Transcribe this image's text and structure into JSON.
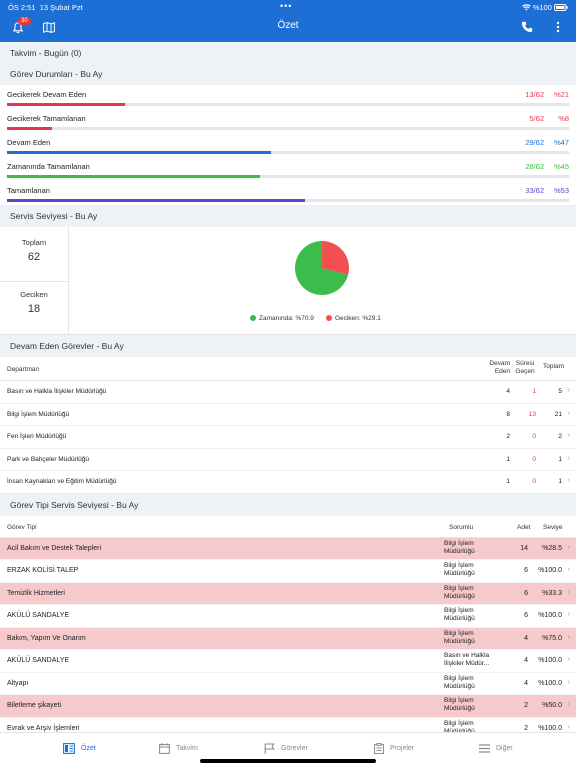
{
  "status_bar": {
    "time": "ÖS 2:51",
    "date": "13 Şubat Pzt",
    "dots": "•••",
    "battery": "%100"
  },
  "header": {
    "title": "Özet",
    "notification_count": "30"
  },
  "takvim": {
    "title": "Takvim - Bugün (0)"
  },
  "gorev_durumlari": {
    "title": "Görev Durumları - Bu Ay",
    "rows": [
      {
        "label": "Gecikerek Devam Eden",
        "fraction": "13/62",
        "percent": "%21",
        "color": "#e53950",
        "progress": 0.21
      },
      {
        "label": "Gecikerek Tamamlanan",
        "fraction": "5/62",
        "percent": "%8",
        "color": "#e53950",
        "progress": 0.08
      },
      {
        "label": "Devam Eden",
        "fraction": "29/62",
        "percent": "%47",
        "color": "#1d6fd6",
        "progress": 0.47
      },
      {
        "label": "Zamanında Tamamlanan",
        "fraction": "28/62",
        "percent": "%45",
        "color": "#3cbc4a",
        "progress": 0.45
      },
      {
        "label": "Tamamlanan",
        "fraction": "33/62",
        "percent": "%53",
        "color": "#5a48c8",
        "progress": 0.53
      }
    ]
  },
  "servis": {
    "title": "Servis Seviyesi - Bu Ay",
    "toplam_label": "Toplam",
    "toplam_value": "62",
    "geciken_label": "Geciken",
    "geciken_value": "18",
    "legend": [
      {
        "label": "Zamanında: %70.9",
        "color": "#3cbc4a"
      },
      {
        "label": "Geciken: %29.1",
        "color": "#f25050"
      }
    ],
    "ontime_fraction": 0.709
  },
  "devam_eden": {
    "title": "Devam Eden Görevler - Bu Ay",
    "headers": {
      "departman": "Departman",
      "devam_eden_1": "Devam",
      "devam_eden_2": "Eden",
      "suresi_1": "Süresi",
      "suresi_2": "Geçen",
      "toplam": "Toplam"
    },
    "rows": [
      {
        "name": "Basın ve Halkla İlişkiler Müdürlüğü",
        "devam": "4",
        "gecen": "1",
        "toplam": "5"
      },
      {
        "name": "Bilgi İşlem Müdürlüğü",
        "devam": "8",
        "gecen": "13",
        "toplam": "21"
      },
      {
        "name": "Fen İşleri Müdürlüğü",
        "devam": "2",
        "gecen": "0",
        "toplam": "2"
      },
      {
        "name": "Park ve Bahçeler Müdürlüğü",
        "devam": "1",
        "gecen": "0",
        "toplam": "1"
      },
      {
        "name": "İnsan Kaynakları ve Eğitim Müdürlüğü",
        "devam": "1",
        "gecen": "0",
        "toplam": "1"
      }
    ]
  },
  "gorev_tipi": {
    "title": "Görev Tipi Servis Seviyesi - Bu Ay",
    "headers": {
      "gorev_tipi": "Görev Tipi",
      "sorumlu": "Sorumlu",
      "adet": "Adet",
      "seviye": "Seviye"
    },
    "rows": [
      {
        "name": "Acil Bakım ve Destek Talepleri",
        "sorumlu_1": "Bilgi İşlem",
        "sorumlu_2": "Müdürlüğü",
        "adet": "14",
        "seviye": "%28.5",
        "late": true
      },
      {
        "name": "ERZAK KOLİSİ TALEP",
        "sorumlu_1": "Bilgi İşlem",
        "sorumlu_2": "Müdürlüğü",
        "adet": "6",
        "seviye": "%100.0",
        "late": false
      },
      {
        "name": "Temizlik Hizmetleri",
        "sorumlu_1": "Bilgi İşlem",
        "sorumlu_2": "Müdürlüğü",
        "adet": "6",
        "seviye": "%33.3",
        "late": true
      },
      {
        "name": "AKÜLÜ SANDALYE",
        "sorumlu_1": "Bilgi İşlem",
        "sorumlu_2": "Müdürlüğü",
        "adet": "6",
        "seviye": "%100.0",
        "late": false
      },
      {
        "name": "Bakım, Yapım Ve Onarım",
        "sorumlu_1": "Bilgi İşlem",
        "sorumlu_2": "Müdürlüğü",
        "adet": "4",
        "seviye": "%75.0",
        "late": true
      },
      {
        "name": "AKÜLÜ SANDALYE",
        "sorumlu_1": "Basın ve Halkla",
        "sorumlu_2": "İlişkiler Müdür...",
        "adet": "4",
        "seviye": "%100.0",
        "late": false
      },
      {
        "name": "Altyapı",
        "sorumlu_1": "Bilgi İşlem",
        "sorumlu_2": "Müdürlüğü",
        "adet": "4",
        "seviye": "%100.0",
        "late": false
      },
      {
        "name": "Biletleme şikayeti",
        "sorumlu_1": "Bilgi İşlem",
        "sorumlu_2": "Müdürlüğü",
        "adet": "2",
        "seviye": "%50.0",
        "late": true
      },
      {
        "name": "Evrak ve Arşiv İşlemleri",
        "sorumlu_1": "Bilgi İşlem",
        "sorumlu_2": "Müdürlüğü",
        "adet": "2",
        "seviye": "%100.0",
        "late": false
      }
    ]
  },
  "tabs": [
    {
      "label": "Özet",
      "icon": "dashboard-icon",
      "active": true
    },
    {
      "label": "Takvim",
      "icon": "calendar-icon",
      "active": false
    },
    {
      "label": "Görevler",
      "icon": "flag-icon",
      "active": false
    },
    {
      "label": "Projeler",
      "icon": "clipboard-icon",
      "active": false
    },
    {
      "label": "Diğer",
      "icon": "menu-icon",
      "active": false
    }
  ],
  "colors": {
    "accent": "#1d6fd6",
    "late_row": "#f6c9cc",
    "red": "#e53950",
    "green": "#3cbc4a"
  }
}
